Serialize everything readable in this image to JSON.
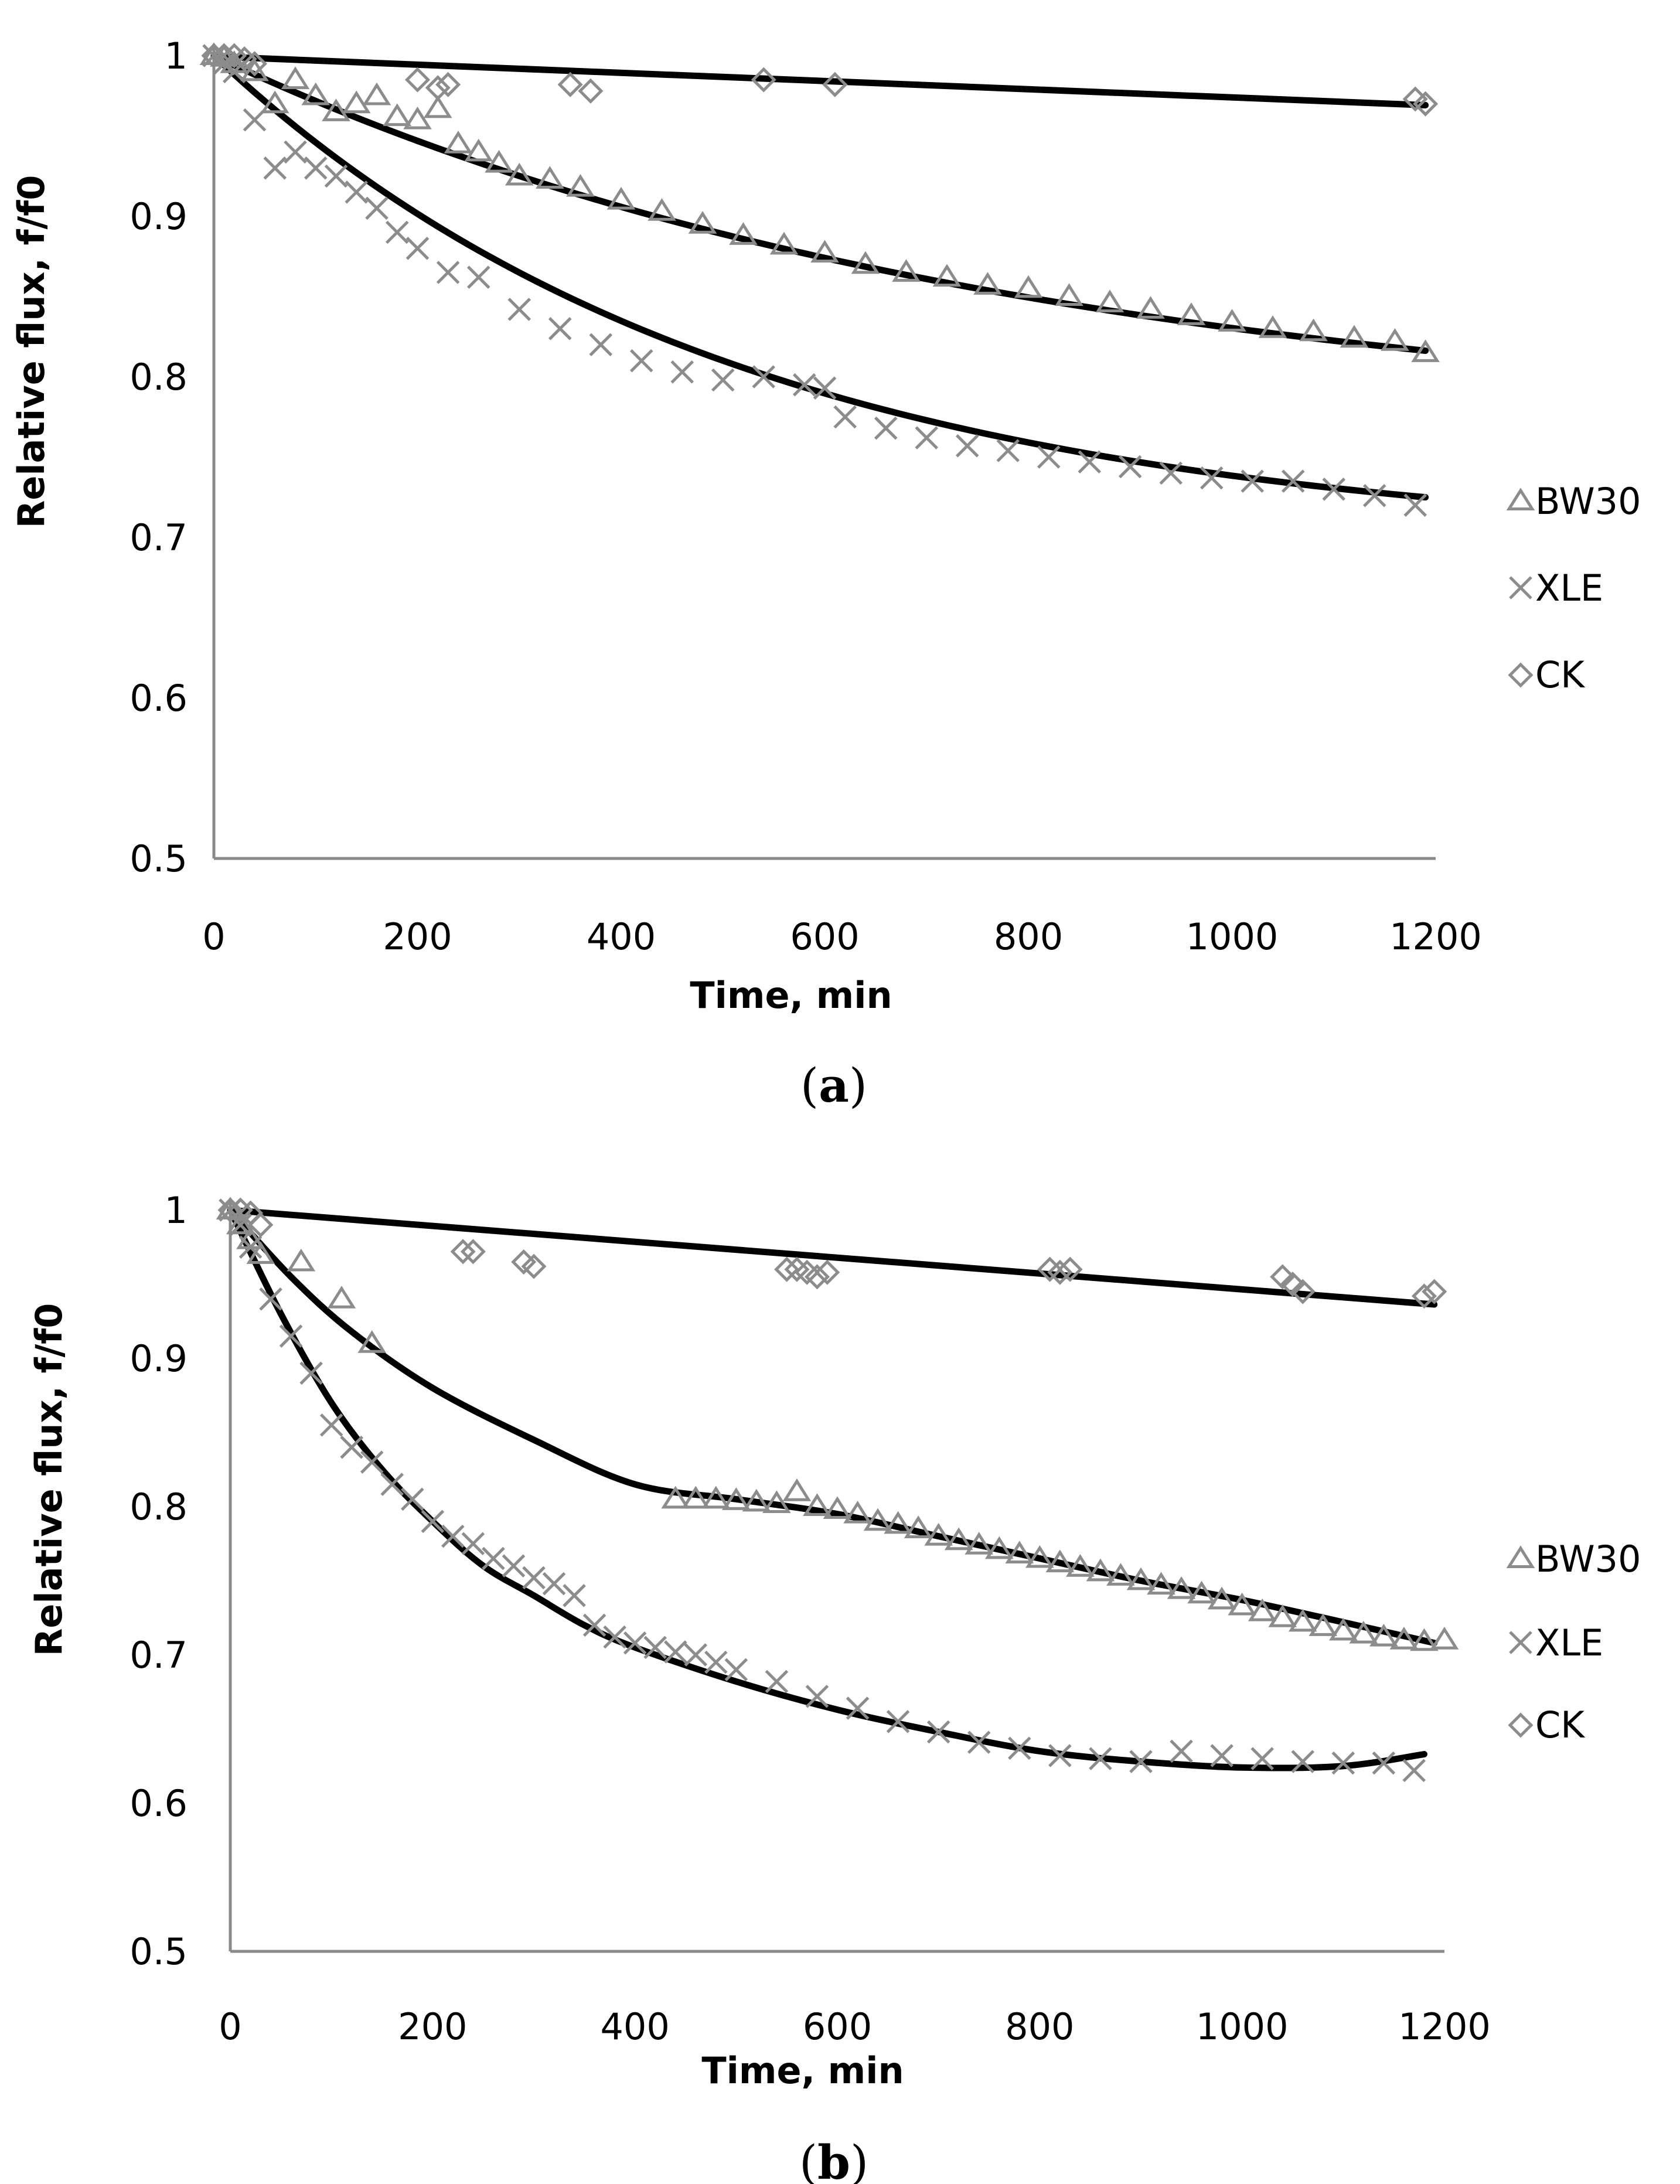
{
  "colors": {
    "marker": "#8c8c8c",
    "fit": "#000000",
    "axis": "#8a8a8a"
  },
  "chart_data": [
    {
      "type": "scatter",
      "panel": "(a)",
      "panel_letter": "a",
      "xlabel": "Time, min",
      "ylabel": "Relative flux, f/f0",
      "xlim": [
        0,
        1200
      ],
      "ylim": [
        0.5,
        1
      ],
      "xticks": [
        0,
        200,
        400,
        600,
        800,
        1000,
        1200
      ],
      "xtick_labels": [
        "0",
        "200",
        "400",
        "600",
        "800",
        "1000",
        "1200"
      ],
      "yticks": [
        0.5,
        0.6,
        0.7,
        0.8,
        0.9,
        1
      ],
      "ytick_labels": [
        "0.5",
        "0.6",
        "0.7",
        "0.8",
        "0.9",
        "1"
      ],
      "legend": [
        "BW30",
        "XLE",
        "CK"
      ],
      "series": [
        {
          "name": "BW30",
          "marker": "triangle",
          "fit": "exp",
          "fit_params": {
            "a": 0.235,
            "b": 0.00128,
            "c": 0.765
          },
          "data": {
            "x": [
              0,
              10,
              20,
              40,
              60,
              80,
              100,
              120,
              140,
              160,
              180,
              200,
              220,
              240,
              260,
              280,
              300,
              330,
              360,
              400,
              440,
              480,
              520,
              560,
              600,
              640,
              680,
              720,
              760,
              800,
              840,
              880,
              920,
              960,
              1000,
              1040,
              1080,
              1120,
              1160,
              1190
            ],
            "y": [
              1.0,
              0.999,
              0.995,
              0.99,
              0.97,
              0.985,
              0.975,
              0.965,
              0.97,
              0.975,
              0.962,
              0.96,
              0.967,
              0.945,
              0.94,
              0.933,
              0.925,
              0.923,
              0.918,
              0.91,
              0.903,
              0.895,
              0.888,
              0.882,
              0.877,
              0.87,
              0.865,
              0.862,
              0.857,
              0.855,
              0.85,
              0.846,
              0.842,
              0.838,
              0.834,
              0.83,
              0.828,
              0.824,
              0.822,
              0.815
            ]
          }
        },
        {
          "name": "XLE",
          "marker": "x",
          "fit": "exp",
          "fit_params": {
            "a": 0.305,
            "b": 0.00195,
            "c": 0.695
          },
          "data": {
            "x": [
              0,
              10,
              20,
              40,
              60,
              80,
              100,
              120,
              140,
              160,
              180,
              200,
              230,
              260,
              300,
              340,
              380,
              420,
              460,
              500,
              540,
              580,
              600,
              620,
              660,
              700,
              740,
              780,
              820,
              860,
              900,
              940,
              980,
              1020,
              1060,
              1100,
              1140,
              1180
            ],
            "y": [
              1.0,
              0.995,
              0.99,
              0.96,
              0.93,
              0.94,
              0.93,
              0.925,
              0.915,
              0.905,
              0.89,
              0.88,
              0.865,
              0.862,
              0.842,
              0.83,
              0.82,
              0.81,
              0.803,
              0.798,
              0.8,
              0.795,
              0.793,
              0.775,
              0.768,
              0.762,
              0.757,
              0.754,
              0.75,
              0.747,
              0.744,
              0.74,
              0.737,
              0.735,
              0.735,
              0.73,
              0.726,
              0.72
            ]
          }
        },
        {
          "name": "CK",
          "marker": "diamond",
          "fit": "linear",
          "fit_params": {
            "slope": -2.55e-05,
            "intercept": 0.9995
          },
          "data": {
            "x": [
              0,
              10,
              20,
              30,
              40,
              200,
              220,
              230,
              350,
              370,
              540,
              610,
              1180,
              1190
            ],
            "y": [
              1.0,
              1.0,
              1.0,
              0.998,
              0.995,
              0.985,
              0.98,
              0.982,
              0.982,
              0.978,
              0.985,
              0.982,
              0.973,
              0.97
            ]
          }
        }
      ]
    },
    {
      "type": "scatter",
      "panel": "(b)",
      "panel_letter": "b",
      "xlabel": "Time, min",
      "ylabel": "Relative flux, f/f0",
      "xlim": [
        0,
        1200
      ],
      "ylim": [
        0.5,
        1
      ],
      "xticks": [
        0,
        200,
        400,
        600,
        800,
        1000,
        1200
      ],
      "xtick_labels": [
        "0",
        "200",
        "400",
        "600",
        "800",
        "1000",
        "1200"
      ],
      "yticks": [
        0.5,
        0.6,
        0.7,
        0.8,
        0.9,
        1
      ],
      "ytick_labels": [
        "0.5",
        "0.6",
        "0.7",
        "0.8",
        "0.9",
        "1"
      ],
      "legend": [
        "BW30",
        "XLE",
        "CK"
      ],
      "series": [
        {
          "name": "BW30",
          "marker": "triangle",
          "fit": "poly",
          "fit_params": {
            "coefs": [
              1.0,
              -0.00076,
              4e-07
            ]
          },
          "fit_points": {
            "x": [
              0,
              60,
              120,
              200,
              300,
              400,
              500,
              600,
              700,
              800,
              900,
              1000,
              1100,
              1190
            ],
            "y": [
              1.0,
              0.955,
              0.918,
              0.88,
              0.845,
              0.815,
              0.805,
              0.795,
              0.78,
              0.765,
              0.75,
              0.737,
              0.722,
              0.708
            ]
          },
          "data": {
            "x": [
              0,
              10,
              20,
              30,
              70,
              110,
              140,
              440,
              460,
              480,
              500,
              520,
              540,
              560,
              580,
              600,
              620,
              640,
              660,
              680,
              700,
              720,
              740,
              760,
              780,
              800,
              820,
              840,
              860,
              880,
              900,
              920,
              940,
              960,
              980,
              1000,
              1020,
              1040,
              1060,
              1080,
              1100,
              1120,
              1140,
              1160,
              1180,
              1200
            ],
            "y": [
              1.0,
              0.99,
              0.98,
              0.97,
              0.965,
              0.94,
              0.91,
              0.805,
              0.805,
              0.805,
              0.804,
              0.803,
              0.802,
              0.81,
              0.8,
              0.798,
              0.795,
              0.79,
              0.788,
              0.785,
              0.78,
              0.777,
              0.774,
              0.771,
              0.768,
              0.765,
              0.762,
              0.759,
              0.756,
              0.753,
              0.75,
              0.747,
              0.744,
              0.741,
              0.737,
              0.733,
              0.729,
              0.725,
              0.722,
              0.719,
              0.716,
              0.714,
              0.712,
              0.71,
              0.709,
              0.71
            ]
          }
        },
        {
          "name": "XLE",
          "marker": "x",
          "fit": "poly",
          "fit_params": {
            "coefs": [
              1.0,
              -0.00127,
              8.2e-07,
              -1e-10
            ]
          },
          "fit_points": {
            "x": [
              0,
              50,
              100,
              150,
              200,
              250,
              300,
              350,
              400,
              500,
              600,
              700,
              800,
              900,
              1000,
              1100,
              1180
            ],
            "y": [
              1.0,
              0.93,
              0.87,
              0.825,
              0.79,
              0.76,
              0.74,
              0.72,
              0.705,
              0.682,
              0.663,
              0.648,
              0.635,
              0.628,
              0.624,
              0.625,
              0.633
            ]
          },
          "data": {
            "x": [
              0,
              10,
              20,
              40,
              60,
              80,
              100,
              120,
              140,
              160,
              180,
              200,
              220,
              240,
              260,
              280,
              300,
              320,
              340,
              360,
              380,
              400,
              420,
              440,
              460,
              480,
              500,
              540,
              580,
              620,
              660,
              700,
              740,
              780,
              820,
              860,
              900,
              940,
              980,
              1020,
              1060,
              1100,
              1140,
              1170
            ],
            "y": [
              1.0,
              0.99,
              0.975,
              0.94,
              0.915,
              0.89,
              0.855,
              0.84,
              0.83,
              0.815,
              0.805,
              0.79,
              0.78,
              0.775,
              0.765,
              0.76,
              0.752,
              0.748,
              0.74,
              0.72,
              0.712,
              0.708,
              0.705,
              0.702,
              0.7,
              0.695,
              0.69,
              0.682,
              0.672,
              0.664,
              0.655,
              0.648,
              0.641,
              0.637,
              0.632,
              0.63,
              0.628,
              0.635,
              0.632,
              0.63,
              0.628,
              0.627,
              0.627,
              0.622
            ]
          }
        },
        {
          "name": "CK",
          "marker": "diamond",
          "fit": "linear",
          "fit_params": {
            "slope": -5.35e-05,
            "intercept": 1.0
          },
          "data": {
            "x": [
              0,
              10,
              20,
              30,
              230,
              240,
              290,
              300,
              550,
              560,
              570,
              580,
              590,
              810,
              820,
              830,
              1040,
              1050,
              1060,
              1180,
              1190
            ],
            "y": [
              1.0,
              1.0,
              0.998,
              0.99,
              0.972,
              0.972,
              0.965,
              0.962,
              0.96,
              0.96,
              0.958,
              0.955,
              0.958,
              0.96,
              0.958,
              0.96,
              0.955,
              0.95,
              0.945,
              0.942,
              0.945
            ]
          }
        }
      ]
    }
  ]
}
